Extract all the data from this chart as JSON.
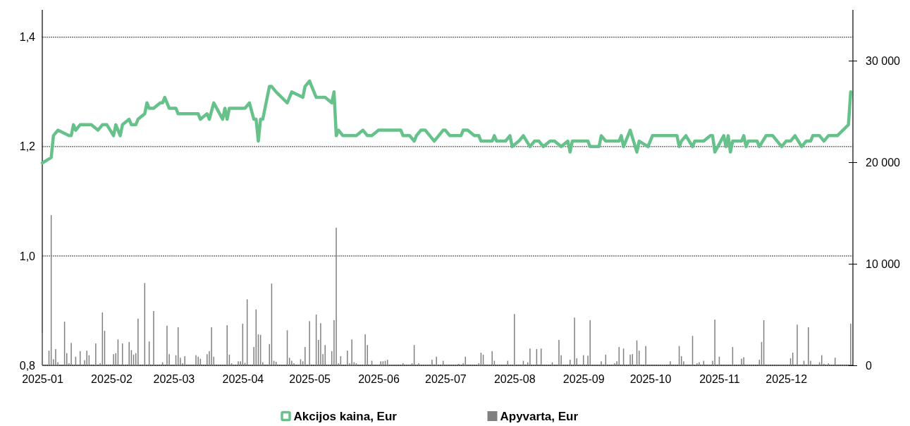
{
  "chart_data": {
    "type": "line",
    "xlim": [
      "2025-01-01",
      "2025-12-31"
    ],
    "xticks": [
      "2025-01",
      "2025-02",
      "2025-03",
      "2025-04",
      "2025-05",
      "2025-06",
      "2025-07",
      "2025-08",
      "2025-09",
      "2025-10",
      "2025-11",
      "2025-12"
    ],
    "ylim": [
      0.8,
      1.45
    ],
    "yticks": [
      {
        "value": 0.8,
        "label": "0,8"
      },
      {
        "value": 1.0,
        "label": "1,0"
      },
      {
        "value": 1.2,
        "label": "1,2"
      },
      {
        "value": 1.4,
        "label": "1,4"
      }
    ],
    "y2lim": [
      0,
      35000
    ],
    "y2ticks": [
      0,
      {
        "value": 10000,
        "label": "10 000"
      },
      {
        "value": 20000,
        "label": "20 000"
      },
      {
        "value": 30000,
        "label": "30 000"
      }
    ],
    "grid": "y",
    "legend": "bottom",
    "series": [
      {
        "name": "Akcijos kaina, Eur",
        "color": "#66c28a",
        "x": [
          "2025-01-01",
          "2025-01-05",
          "2025-01-06",
          "2025-01-08",
          "2025-01-13",
          "2025-01-14",
          "2025-01-15",
          "2025-01-16",
          "2025-01-18",
          "2025-01-23",
          "2025-01-26",
          "2025-01-28",
          "2025-01-30",
          "2025-02-02",
          "2025-02-03",
          "2025-02-05",
          "2025-02-06",
          "2025-02-09",
          "2025-02-10",
          "2025-02-12",
          "2025-02-13",
          "2025-02-16",
          "2025-02-17",
          "2025-02-18",
          "2025-02-20",
          "2025-02-23",
          "2025-02-24",
          "2025-02-25",
          "2025-02-27",
          "2025-03-02",
          "2025-03-03",
          "2025-03-12",
          "2025-03-13",
          "2025-03-16",
          "2025-03-17",
          "2025-03-19",
          "2025-03-23",
          "2025-03-24",
          "2025-03-25",
          "2025-03-26",
          "2025-04-02",
          "2025-04-04",
          "2025-04-06",
          "2025-04-07",
          "2025-04-08",
          "2025-04-09",
          "2025-04-10",
          "2025-04-13",
          "2025-04-14",
          "2025-04-16",
          "2025-04-21",
          "2025-04-23",
          "2025-04-28",
          "2025-04-29",
          "2025-05-01",
          "2025-05-04",
          "2025-05-08",
          "2025-05-11",
          "2025-05-12",
          "2025-05-13",
          "2025-05-14",
          "2025-05-16",
          "2025-05-22",
          "2025-05-25",
          "2025-05-27",
          "2025-05-29",
          "2025-06-01",
          "2025-06-11",
          "2025-06-12",
          "2025-06-15",
          "2025-06-17",
          "2025-06-18",
          "2025-06-20",
          "2025-06-22",
          "2025-06-24",
          "2025-06-26",
          "2025-06-30",
          "2025-07-01",
          "2025-07-03",
          "2025-07-08",
          "2025-07-09",
          "2025-07-11",
          "2025-07-14",
          "2025-07-16",
          "2025-07-17",
          "2025-07-22",
          "2025-07-23",
          "2025-07-24",
          "2025-07-28",
          "2025-07-30",
          "2025-07-31",
          "2025-08-03",
          "2025-08-05",
          "2025-08-08",
          "2025-08-10",
          "2025-08-12",
          "2025-08-14",
          "2025-08-17",
          "2025-08-19",
          "2025-08-22",
          "2025-08-25",
          "2025-08-26",
          "2025-08-27",
          "2025-08-30",
          "2025-09-03",
          "2025-09-04",
          "2025-09-08",
          "2025-09-09",
          "2025-09-11",
          "2025-09-17",
          "2025-09-18",
          "2025-09-19",
          "2025-09-22",
          "2025-09-25",
          "2025-09-26",
          "2025-09-30",
          "2025-10-02",
          "2025-10-13",
          "2025-10-14",
          "2025-10-15",
          "2025-10-17",
          "2025-10-20",
          "2025-10-21",
          "2025-10-25",
          "2025-10-28",
          "2025-10-29",
          "2025-10-30",
          "2025-11-03",
          "2025-11-04",
          "2025-11-05",
          "2025-11-06",
          "2025-11-07",
          "2025-11-11",
          "2025-11-12",
          "2025-11-13",
          "2025-11-14",
          "2025-11-18",
          "2025-11-19",
          "2025-11-22",
          "2025-11-25",
          "2025-11-27",
          "2025-11-29",
          "2025-12-01",
          "2025-12-03",
          "2025-12-05",
          "2025-12-08",
          "2025-12-10",
          "2025-12-12",
          "2025-12-13",
          "2025-12-16",
          "2025-12-18",
          "2025-12-20",
          "2025-12-24",
          "2025-12-29",
          "2025-12-30"
        ],
        "values": [
          1.17,
          1.18,
          1.22,
          1.23,
          1.22,
          1.22,
          1.24,
          1.23,
          1.24,
          1.24,
          1.23,
          1.24,
          1.24,
          1.22,
          1.24,
          1.22,
          1.24,
          1.25,
          1.24,
          1.24,
          1.25,
          1.26,
          1.28,
          1.27,
          1.27,
          1.28,
          1.28,
          1.29,
          1.27,
          1.27,
          1.26,
          1.26,
          1.25,
          1.26,
          1.25,
          1.28,
          1.25,
          1.27,
          1.25,
          1.27,
          1.27,
          1.28,
          1.25,
          1.25,
          1.21,
          1.25,
          1.25,
          1.31,
          1.31,
          1.3,
          1.28,
          1.3,
          1.29,
          1.31,
          1.32,
          1.29,
          1.29,
          1.28,
          1.3,
          1.22,
          1.23,
          1.22,
          1.22,
          1.23,
          1.22,
          1.22,
          1.23,
          1.23,
          1.22,
          1.22,
          1.21,
          1.22,
          1.23,
          1.23,
          1.22,
          1.21,
          1.23,
          1.23,
          1.22,
          1.22,
          1.23,
          1.23,
          1.22,
          1.22,
          1.21,
          1.21,
          1.22,
          1.21,
          1.21,
          1.22,
          1.2,
          1.21,
          1.22,
          1.2,
          1.21,
          1.21,
          1.2,
          1.21,
          1.21,
          1.2,
          1.21,
          1.19,
          1.21,
          1.21,
          1.21,
          1.2,
          1.2,
          1.22,
          1.21,
          1.21,
          1.22,
          1.2,
          1.23,
          1.19,
          1.21,
          1.2,
          1.22,
          1.22,
          1.2,
          1.21,
          1.22,
          1.2,
          1.21,
          1.21,
          1.22,
          1.22,
          1.19,
          1.22,
          1.2,
          1.22,
          1.19,
          1.21,
          1.21,
          1.22,
          1.2,
          1.21,
          1.21,
          1.2,
          1.22,
          1.22,
          1.21,
          1.2,
          1.21,
          1.21,
          1.22,
          1.2,
          1.21,
          1.21,
          1.22,
          1.22,
          1.21,
          1.22,
          1.22,
          1.24,
          1.3
        ]
      },
      {
        "name": "Apyvarta, Eur",
        "type": "bar",
        "axis": "y2",
        "color": "#808080",
        "x": [
          "2025-01-01",
          "2025-01-04",
          "2025-01-05",
          "2025-01-06",
          "2025-01-07",
          "2025-01-08",
          "2025-01-11",
          "2025-01-12",
          "2025-01-13",
          "2025-01-14",
          "2025-01-16",
          "2025-01-18",
          "2025-01-20",
          "2025-01-21",
          "2025-01-22",
          "2025-01-25",
          "2025-01-27",
          "2025-01-28",
          "2025-01-29",
          "2025-02-02",
          "2025-02-03",
          "2025-02-04",
          "2025-02-06",
          "2025-02-09",
          "2025-02-10",
          "2025-02-11",
          "2025-02-12",
          "2025-02-13",
          "2025-02-16",
          "2025-02-18",
          "2025-02-20",
          "2025-02-24",
          "2025-02-26",
          "2025-02-27",
          "2025-03-02",
          "2025-03-03",
          "2025-03-04",
          "2025-03-05",
          "2025-03-06",
          "2025-03-11",
          "2025-03-12",
          "2025-03-13",
          "2025-03-16",
          "2025-03-17",
          "2025-03-18",
          "2025-03-19",
          "2025-03-25",
          "2025-03-26",
          "2025-03-27",
          "2025-03-30",
          "2025-03-31",
          "2025-04-01",
          "2025-04-02",
          "2025-04-03",
          "2025-04-06",
          "2025-04-07",
          "2025-04-08",
          "2025-04-09",
          "2025-04-10",
          "2025-04-13",
          "2025-04-14",
          "2025-04-15",
          "2025-04-16",
          "2025-04-21",
          "2025-04-22",
          "2025-04-23",
          "2025-04-24",
          "2025-04-27",
          "2025-04-28",
          "2025-04-29",
          "2025-05-01",
          "2025-05-04",
          "2025-05-05",
          "2025-05-06",
          "2025-05-07",
          "2025-05-08",
          "2025-05-11",
          "2025-05-12",
          "2025-05-13",
          "2025-05-14",
          "2025-05-15",
          "2025-05-18",
          "2025-05-19",
          "2025-05-20",
          "2025-05-21",
          "2025-05-22",
          "2025-05-26",
          "2025-05-27",
          "2025-05-29",
          "2025-06-02",
          "2025-06-03",
          "2025-06-04",
          "2025-06-05",
          "2025-06-12",
          "2025-06-16",
          "2025-06-17",
          "2025-06-19",
          "2025-06-25",
          "2025-06-27",
          "2025-06-30",
          "2025-07-07",
          "2025-07-09",
          "2025-07-10",
          "2025-07-16",
          "2025-07-17",
          "2025-07-18",
          "2025-07-22",
          "2025-07-23",
          "2025-07-29",
          "2025-08-01",
          "2025-08-05",
          "2025-08-07",
          "2025-08-08",
          "2025-08-11",
          "2025-08-13",
          "2025-08-18",
          "2025-08-21",
          "2025-08-22",
          "2025-08-26",
          "2025-08-28",
          "2025-08-29",
          "2025-09-01",
          "2025-09-03",
          "2025-09-04",
          "2025-09-09",
          "2025-09-11",
          "2025-09-15",
          "2025-09-16",
          "2025-09-17",
          "2025-09-19",
          "2025-09-22",
          "2025-09-23",
          "2025-09-25",
          "2025-09-26",
          "2025-09-29",
          "2025-10-10",
          "2025-10-14",
          "2025-10-15",
          "2025-10-16",
          "2025-10-20",
          "2025-10-22",
          "2025-10-23",
          "2025-10-25",
          "2025-10-29",
          "2025-10-30",
          "2025-11-01",
          "2025-11-07",
          "2025-11-11",
          "2025-11-12",
          "2025-11-19",
          "2025-11-20",
          "2025-11-21",
          "2025-12-03",
          "2025-12-04",
          "2025-12-06",
          "2025-12-09",
          "2025-12-11",
          "2025-12-12",
          "2025-12-16",
          "2025-12-17",
          "2025-12-18",
          "2025-12-20",
          "2025-12-23",
          "2025-12-30"
        ],
        "values": [
          3200,
          1450,
          14800,
          600,
          1600,
          300,
          4300,
          1200,
          200,
          2200,
          850,
          1400,
          500,
          1450,
          1000,
          2150,
          200,
          5200,
          3400,
          1100,
          1200,
          2550,
          2150,
          2300,
          1500,
          1050,
          1200,
          4600,
          8100,
          2350,
          5350,
          300,
          3900,
          1100,
          1000,
          3750,
          750,
          200,
          900,
          1000,
          850,
          650,
          1100,
          1400,
          3750,
          850,
          3950,
          1050,
          200,
          400,
          400,
          4100,
          250,
          6500,
          1800,
          5500,
          3050,
          3000,
          300,
          2100,
          8050,
          450,
          350,
          3450,
          750,
          450,
          200,
          600,
          400,
          1800,
          4350,
          5000,
          2500,
          4150,
          1100,
          2000,
          1400,
          4450,
          13550,
          200,
          900,
          1450,
          200,
          2550,
          300,
          200,
          3050,
          2000,
          450,
          400,
          400,
          450,
          550,
          200,
          200,
          2000,
          200,
          550,
          850,
          450,
          150,
          200,
          850,
          200,
          1250,
          1050,
          1400,
          450,
          450,
          5050,
          450,
          300,
          1650,
          1600,
          1650,
          300,
          2500,
          1000,
          550,
          4700,
          700,
          1000,
          950,
          4450,
          400,
          1050,
          200,
          400,
          1800,
          1650,
          1050,
          1100,
          2450,
          1450,
          1900,
          400,
          1900,
          900,
          400,
          2900,
          200,
          300,
          450,
          450,
          4500,
          850,
          1800,
          650,
          800,
          550,
          2300,
          4450,
          700,
          1250,
          4000,
          450,
          3750,
          450,
          300,
          1000,
          150,
          200,
          750,
          4100
        ]
      }
    ]
  }
}
